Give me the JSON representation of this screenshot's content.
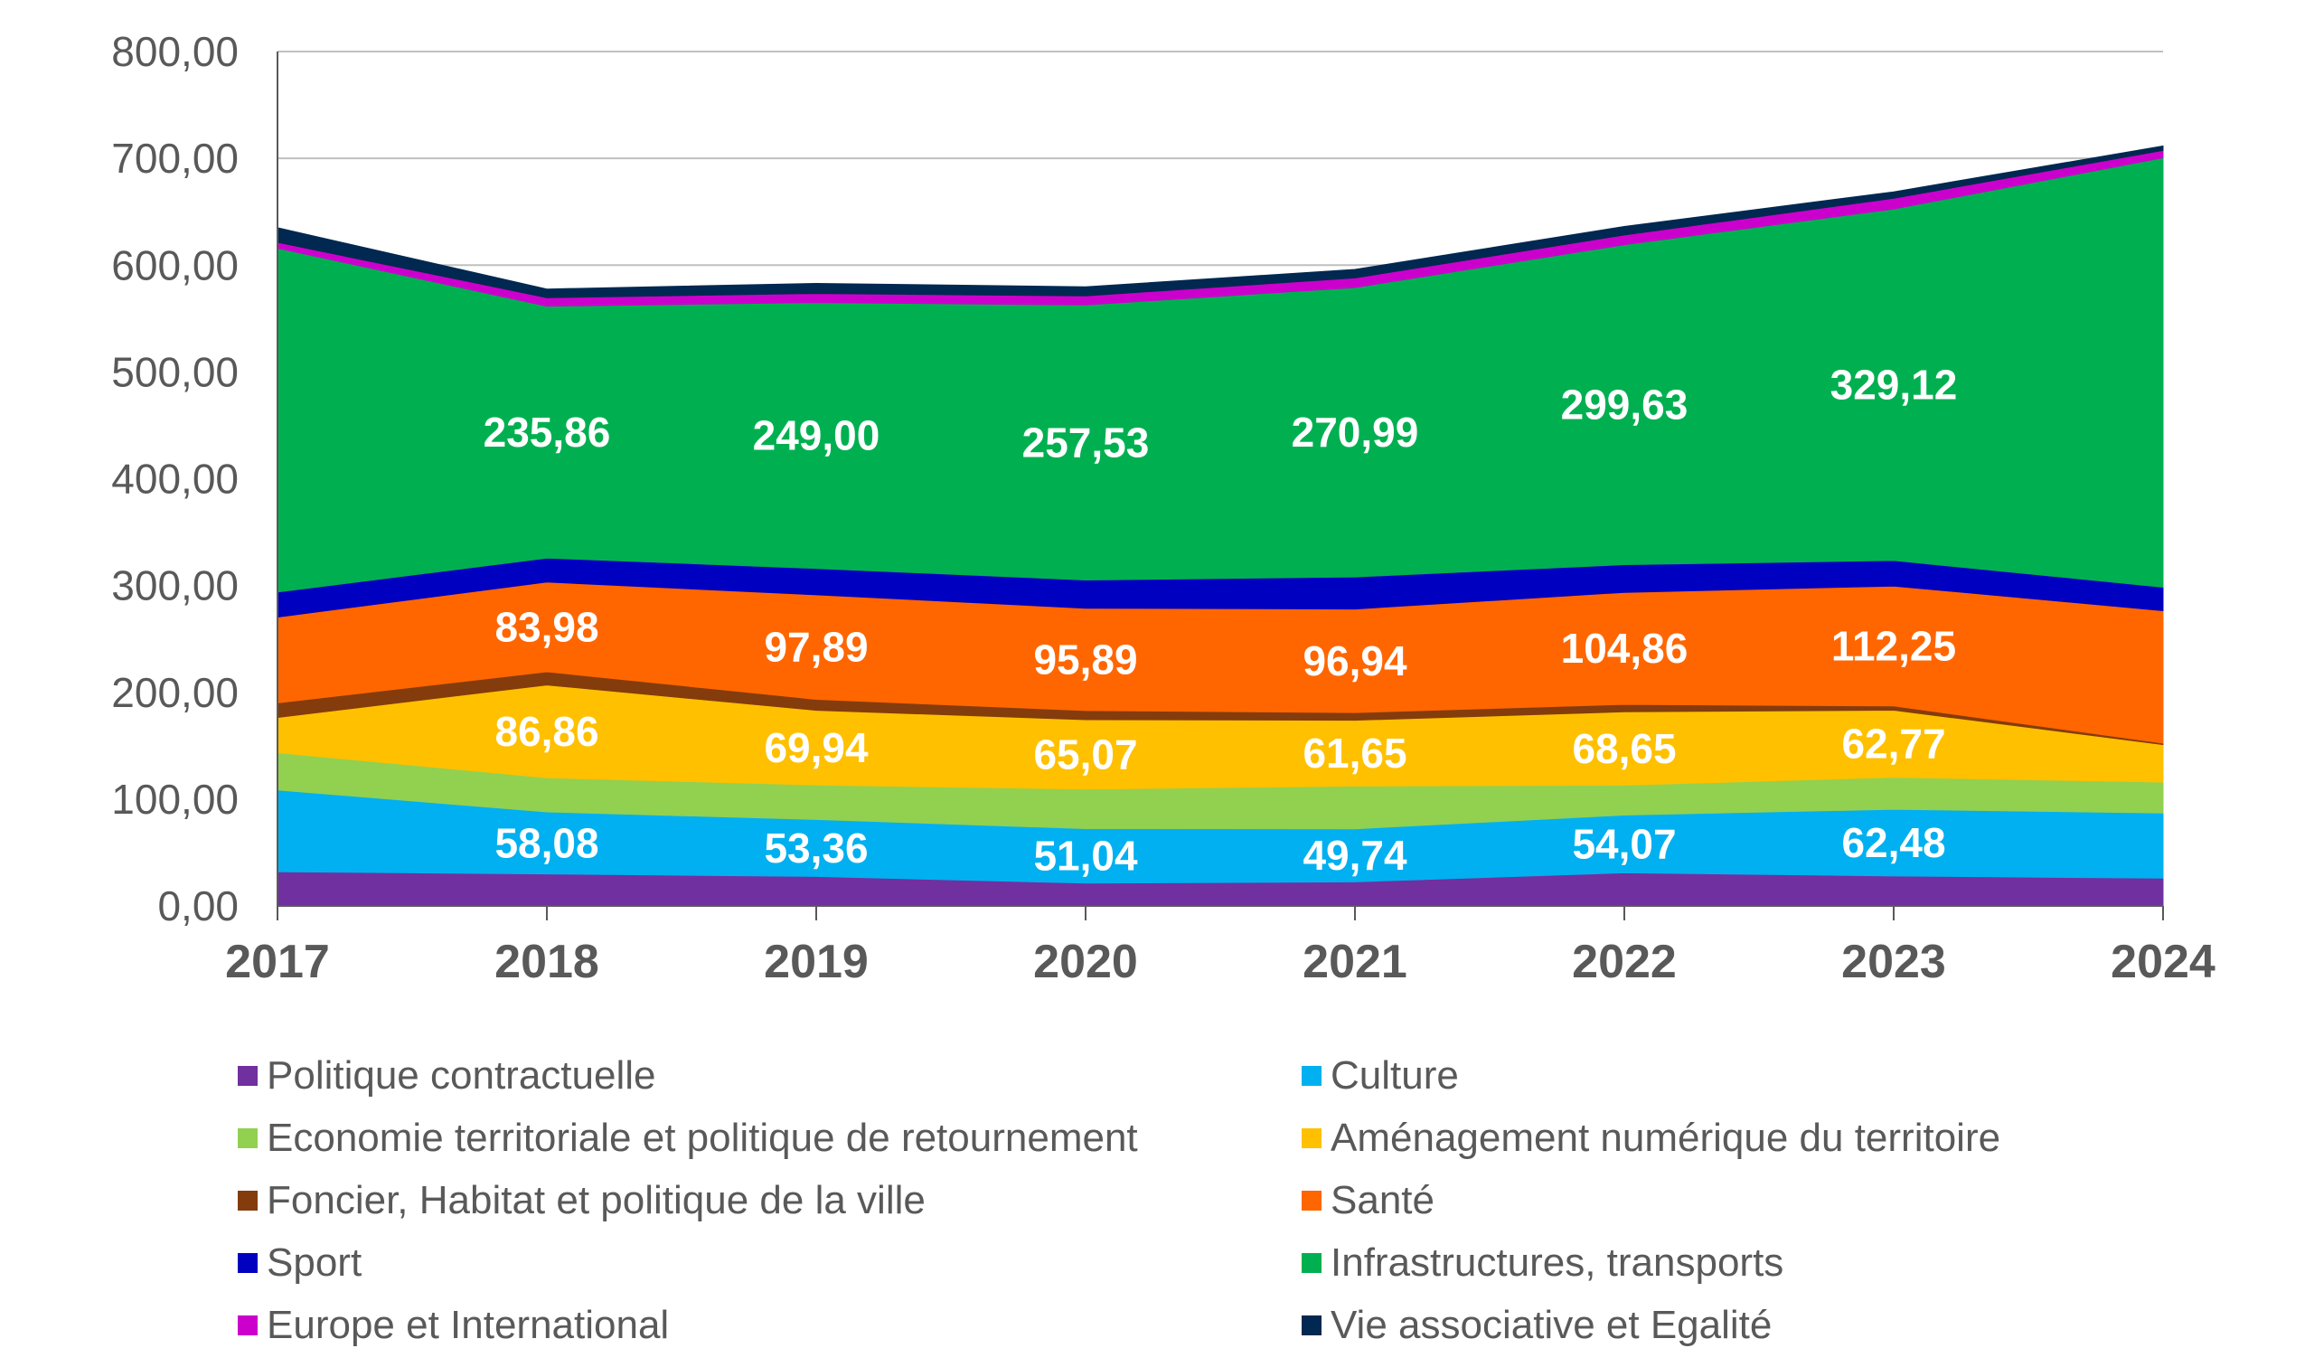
{
  "chart_data": {
    "type": "area",
    "stacked": true,
    "title": "",
    "xlabel": "",
    "ylabel": "",
    "ylim": [
      0,
      800
    ],
    "yticks": [
      "0,00",
      "100,00",
      "200,00",
      "300,00",
      "400,00",
      "500,00",
      "600,00",
      "700,00",
      "800,00"
    ],
    "ytick_values": [
      0,
      100,
      200,
      300,
      400,
      500,
      600,
      700,
      800
    ],
    "grid": true,
    "legend_position": "bottom",
    "categories": [
      "2017",
      "2018",
      "2019",
      "2020",
      "2021",
      "2022",
      "2023",
      "2024"
    ],
    "series": [
      {
        "name": "Politique contractuelle",
        "color": "#7030a0",
        "values": [
          32,
          30,
          27.6,
          21.3,
          22.5,
          31,
          28,
          26
        ],
        "labels": []
      },
      {
        "name": "Culture",
        "color": "#00b0f0",
        "values": [
          76.5,
          58.08,
          53.36,
          51.04,
          49.74,
          54.07,
          62.48,
          61
        ],
        "labels": [
          "",
          "58,08",
          "53,36",
          "51,04",
          "49,74",
          "54,07",
          "62,48",
          ""
        ]
      },
      {
        "name": "Economie territoriale et politique de retournement",
        "color": "#92d050",
        "values": [
          35,
          32,
          32.3,
          37,
          40,
          28,
          30,
          29
        ],
        "labels": []
      },
      {
        "name": "Aménagement numérique du territoire",
        "color": "#ffc000",
        "values": [
          33,
          86.86,
          69.94,
          65.07,
          61.65,
          68.65,
          62.77,
          35
        ],
        "labels": [
          "",
          "86,86",
          "69,94",
          "65,07",
          "61,65",
          "68,65",
          "62,77",
          ""
        ]
      },
      {
        "name": "Foncier, Habitat et politique de la ville",
        "color": "#843c0c",
        "values": [
          13.6,
          12.3,
          10.2,
          8.5,
          7.2,
          7,
          4,
          1.5
        ],
        "labels": []
      },
      {
        "name": "Santé",
        "color": "#ff6600",
        "values": [
          80.4,
          83.98,
          97.89,
          95.89,
          96.94,
          104.86,
          112.25,
          124
        ],
        "labels": [
          "",
          "83,98",
          "97,89",
          "95,89",
          "96,94",
          "104,86",
          "112,25",
          ""
        ]
      },
      {
        "name": "Sport",
        "color": "#0000c0",
        "values": [
          23.4,
          22.5,
          24.7,
          26.4,
          30,
          26,
          24,
          22
        ],
        "labels": []
      },
      {
        "name": "Infrastructures, transports",
        "color": "#00b050",
        "values": [
          322,
          235.86,
          249,
          257.53,
          270.99,
          299.63,
          329.12,
          402
        ],
        "labels": [
          "",
          "235,86",
          "249,00",
          "257,53",
          "270,99",
          "299,63",
          "329,12",
          ""
        ]
      },
      {
        "name": "Europe et International",
        "color": "#cc00cc",
        "values": [
          5.5,
          8,
          8.5,
          8.5,
          9,
          9,
          10,
          7
        ],
        "labels": []
      },
      {
        "name": "Vie associative et Egalité",
        "color": "#002850",
        "values": [
          13.6,
          8,
          9.4,
          8.5,
          8,
          8,
          6,
          4
        ],
        "labels": []
      }
    ],
    "legend_order": [
      0,
      1,
      2,
      3,
      4,
      5,
      6,
      7,
      8,
      9
    ]
  }
}
